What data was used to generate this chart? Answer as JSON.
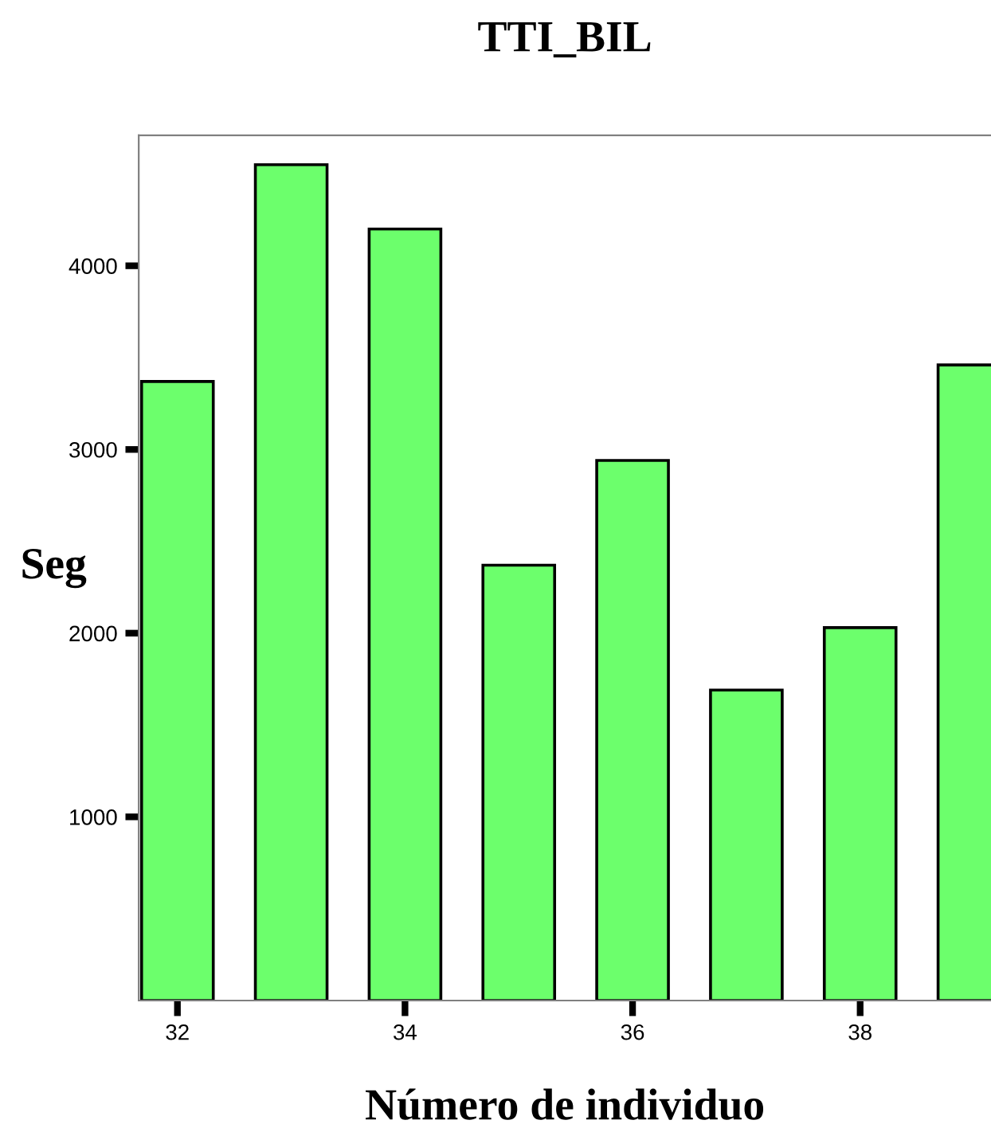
{
  "chart_data": {
    "type": "bar",
    "title": "TTI_BIL",
    "xlabel": "Número de individuo",
    "ylabel": "Seg",
    "x": [
      32,
      33,
      34,
      35,
      36,
      37,
      38,
      39
    ],
    "values": [
      3370,
      4550,
      4200,
      2370,
      2940,
      1690,
      2030,
      3460
    ],
    "color": "#6cff6c",
    "xlim": [
      31.66,
      39.15
    ],
    "xticks": [
      32,
      34,
      36,
      38
    ],
    "ylim": [
      0,
      4710
    ],
    "yticks": [
      1000,
      2000,
      3000,
      4000
    ],
    "grid": false,
    "legend": false
  }
}
